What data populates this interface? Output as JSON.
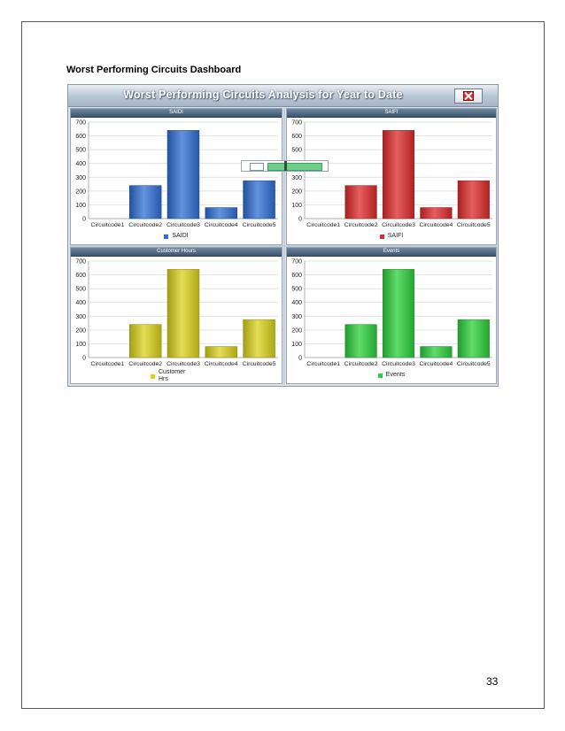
{
  "document": {
    "heading": "Worst Performing Circuits Dashboard",
    "page_number": "33"
  },
  "dashboard": {
    "title": "Worst Performing Circuits Analysis for Year to Date",
    "close_icon": "close-x-icon",
    "panels": [
      {
        "title": "SAIDI",
        "legend": "SAIDI",
        "color": "#2f6fd4"
      },
      {
        "title": "SAIFI",
        "legend": "SAIFI",
        "color": "#dd2a2a"
      },
      {
        "title": "Customer Hours",
        "legend": "Customer Hrs",
        "color": "#d9d21c"
      },
      {
        "title": "Events",
        "legend": "Events",
        "color": "#2ccf3b"
      }
    ]
  },
  "chart_data": [
    {
      "type": "bar",
      "title": "SAIDI",
      "categories": [
        "Circuitcode1",
        "Circuitcode2",
        "Circuitcode3",
        "Circuitcode4",
        "Circuitcode5"
      ],
      "series": [
        {
          "name": "SAIDI",
          "values": [
            0,
            240,
            640,
            80,
            275
          ]
        }
      ],
      "ylim": [
        0,
        700
      ],
      "yticks": [
        0,
        100,
        200,
        300,
        400,
        500,
        600,
        700
      ],
      "grid": true,
      "legend_position": "bottom"
    },
    {
      "type": "bar",
      "title": "SAIFI",
      "categories": [
        "Circuitcode1",
        "Circuitcode2",
        "Circuitcode3",
        "Circuitcode4",
        "Circuitcode5"
      ],
      "series": [
        {
          "name": "SAIFI",
          "values": [
            0,
            240,
            640,
            80,
            275
          ]
        }
      ],
      "ylim": [
        0,
        700
      ],
      "yticks": [
        0,
        100,
        200,
        300,
        400,
        500,
        600,
        700
      ],
      "grid": true,
      "legend_position": "bottom"
    },
    {
      "type": "bar",
      "title": "Customer Hours",
      "categories": [
        "Circuitcode1",
        "Circuitcode2",
        "Circuitcode3",
        "Circuitcode4",
        "Circuitcode5"
      ],
      "series": [
        {
          "name": "Customer Hrs",
          "values": [
            0,
            240,
            640,
            80,
            275
          ]
        }
      ],
      "ylim": [
        0,
        700
      ],
      "yticks": [
        0,
        100,
        200,
        300,
        400,
        500,
        600,
        700
      ],
      "grid": true,
      "legend_position": "bottom"
    },
    {
      "type": "bar",
      "title": "Events",
      "categories": [
        "Circuitcode1",
        "Circuitcode2",
        "Circuitcode3",
        "Circuitcode4",
        "Circuitcode5"
      ],
      "series": [
        {
          "name": "Events",
          "values": [
            0,
            240,
            640,
            80,
            275
          ]
        }
      ],
      "ylim": [
        0,
        700
      ],
      "yticks": [
        0,
        100,
        200,
        300,
        400,
        500,
        600,
        700
      ],
      "grid": true,
      "legend_position": "bottom"
    }
  ]
}
